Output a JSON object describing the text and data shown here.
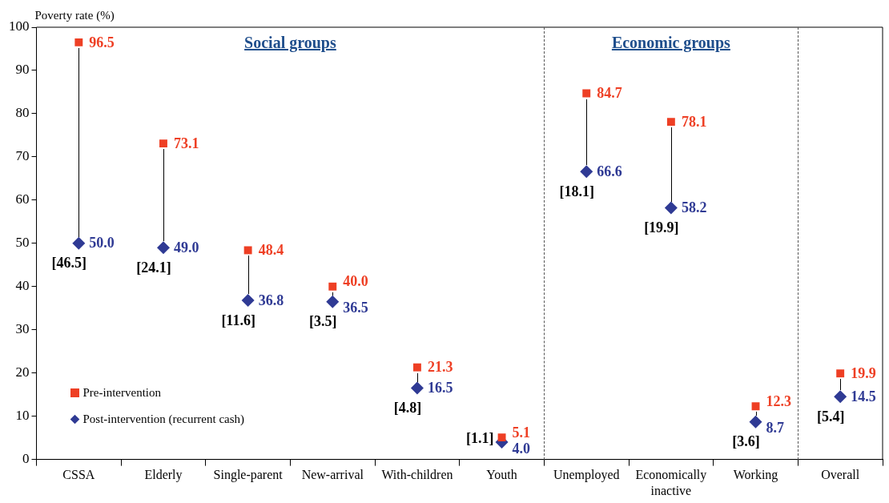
{
  "chart_data": {
    "type": "scatter",
    "ylabel": "Poverty rate (%)",
    "categories": [
      "CSSA",
      "Elderly",
      "Single-parent",
      "New-arrival",
      "With-children",
      "Youth",
      "Unemployed",
      "Economically inactive",
      "Working",
      "Overall"
    ],
    "ylim": [
      0,
      100
    ],
    "yticks": [
      0,
      10,
      20,
      30,
      40,
      50,
      60,
      70,
      80,
      90,
      100
    ],
    "grid": false,
    "legend": "bottom left",
    "annotations": [
      "Social groups",
      "Economic groups",
      {
        "text": "[46.5]",
        "x": "CSSA",
        "y": 50.0
      },
      {
        "text": "[24.1]",
        "x": "Elderly",
        "y": 49.0
      },
      {
        "text": "[11.6]",
        "x": "Single-parent",
        "y": 36.8
      },
      {
        "text": "[3.5]",
        "x": "New-arrival",
        "y": 36.5
      },
      {
        "text": "[4.8]",
        "x": "With-children",
        "y": 16.5
      },
      {
        "text": "[1.1]",
        "x": "Youth",
        "y": 4.0
      },
      {
        "text": "[18.1]",
        "x": "Unemployed",
        "y": 66.6
      },
      {
        "text": "[19.9]",
        "x": "Economically inactive",
        "y": 58.2
      },
      {
        "text": "[3.6]",
        "x": "Working",
        "y": 8.7
      },
      {
        "text": "[5.4]",
        "x": "Overall",
        "y": 14.5
      }
    ],
    "series": [
      {
        "name": "Pre-intervention",
        "color": "#ee3f24",
        "marker": "square",
        "values": [
          96.5,
          73.1,
          48.4,
          40.0,
          21.3,
          5.1,
          84.7,
          78.1,
          12.3,
          19.9
        ],
        "value_labels": [
          "96.5",
          "73.1",
          "48.4",
          "40.0",
          "21.3",
          "5.1",
          "84.7",
          "78.1",
          "12.3",
          "19.9"
        ]
      },
      {
        "name": "Post-intervention (recurrent cash)",
        "color": "#2f3a94",
        "marker": "diamond",
        "values": [
          50.0,
          49.0,
          36.8,
          36.5,
          16.5,
          4.0,
          66.6,
          58.2,
          8.7,
          14.5
        ],
        "value_labels": [
          "50.0",
          "49.0",
          "36.8",
          "36.5",
          "16.5",
          "4.0",
          "66.6",
          "58.2",
          "8.7",
          "14.5"
        ]
      }
    ]
  }
}
